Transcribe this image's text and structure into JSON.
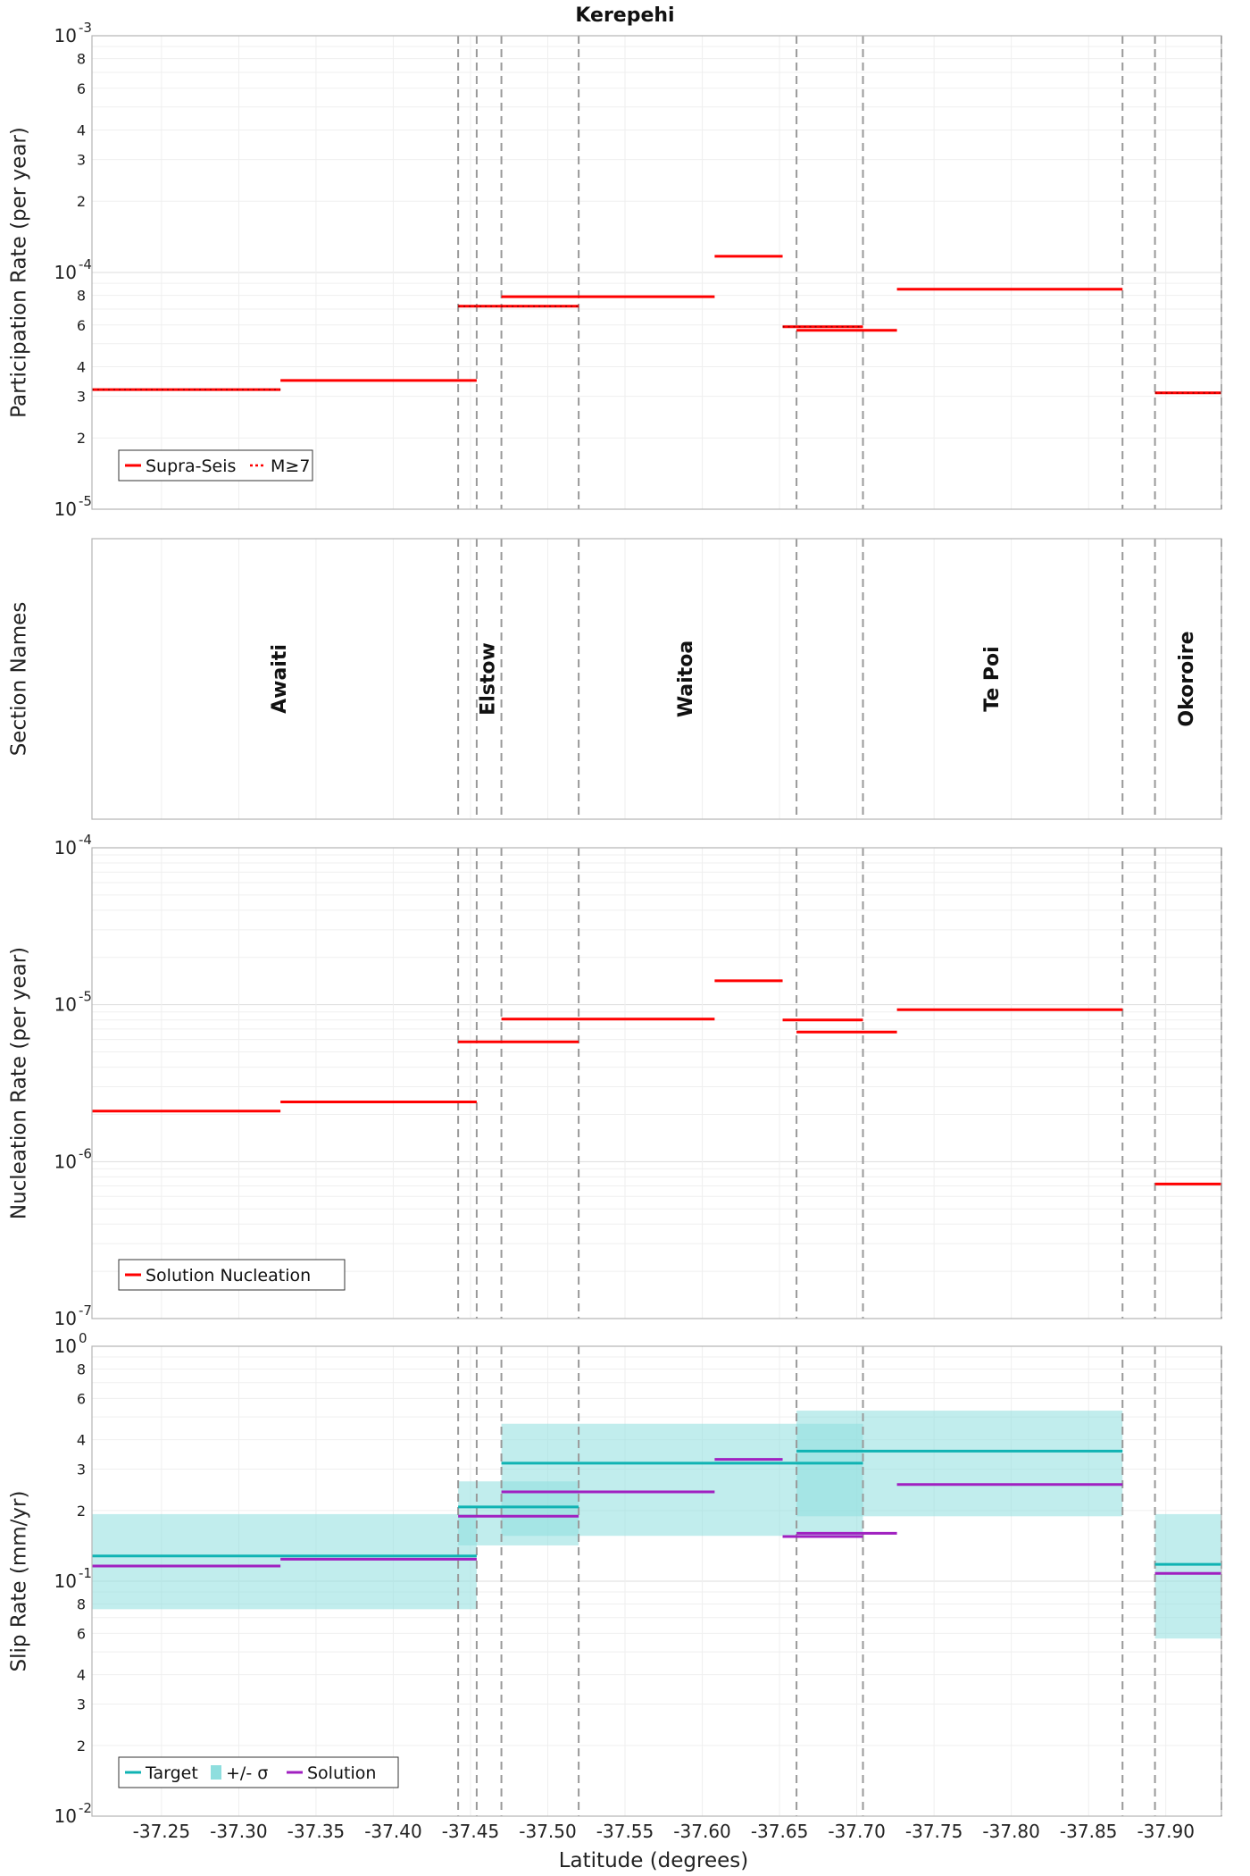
{
  "title": "Kerepehi",
  "xlabel": "Latitude (degrees)",
  "x_axis": {
    "xlim": [
      -37.205,
      -37.936
    ],
    "ticks": [
      -37.25,
      -37.3,
      -37.35,
      -37.4,
      -37.45,
      -37.5,
      -37.55,
      -37.6,
      -37.65,
      -37.7,
      -37.75,
      -37.8,
      -37.85,
      -37.9
    ],
    "tick_labels": [
      "-37.25",
      "-37.30",
      "-37.35",
      "-37.40",
      "-37.45",
      "-37.50",
      "-37.55",
      "-37.60",
      "-37.65",
      "-37.70",
      "-37.75",
      "-37.80",
      "-37.85",
      "-37.90"
    ]
  },
  "section_boundaries": [
    -37.442,
    -37.454,
    -37.47,
    -37.52,
    -37.661,
    -37.704,
    -37.872,
    -37.893,
    -37.936
  ],
  "colors": {
    "supra_seis": "#ff0000",
    "nucleation": "#ff0000",
    "target": "#10b3b3",
    "sigma_band": "#8edede",
    "solution": "#a020c0",
    "boundary": "#999999",
    "grid": "#e6e6e6"
  },
  "chart_data": [
    {
      "type": "line",
      "panel": "participation",
      "ylabel": "Participation Rate (per year)",
      "yscale": "log",
      "ylim": [
        1e-05,
        0.001
      ],
      "y_decade_labels": [
        {
          "base": "10",
          "exp": "-5",
          "value": 1e-05
        },
        {
          "base": "10",
          "exp": "-4",
          "value": 0.0001
        },
        {
          "base": "10",
          "exp": "-3",
          "value": 0.001
        }
      ],
      "y_minor_labels": [
        "2",
        "3",
        "4",
        "6",
        "8"
      ],
      "legend": {
        "position": "bottom-left",
        "entries": [
          "Supra-Seis",
          "M≥7"
        ]
      },
      "series": [
        {
          "name": "Supra-Seis",
          "style": "solid",
          "segments": [
            {
              "x": [
                -37.205,
                -37.327
              ],
              "y": 3.2e-05
            },
            {
              "x": [
                -37.327,
                -37.454
              ],
              "y": 3.5e-05
            },
            {
              "x": [
                -37.442,
                -37.52
              ],
              "y": 7.2e-05
            },
            {
              "x": [
                -37.47,
                -37.608
              ],
              "y": 7.9e-05
            },
            {
              "x": [
                -37.608,
                -37.652
              ],
              "y": 0.000117
            },
            {
              "x": [
                -37.652,
                -37.704
              ],
              "y": 5.9e-05
            },
            {
              "x": [
                -37.661,
                -37.726
              ],
              "y": 5.7e-05
            },
            {
              "x": [
                -37.726,
                -37.872
              ],
              "y": 8.5e-05
            },
            {
              "x": [
                -37.893,
                -37.936
              ],
              "y": 3.1e-05
            }
          ]
        },
        {
          "name": "M≥7",
          "style": "dotted",
          "segments": [
            {
              "x": [
                -37.205,
                -37.327
              ],
              "y": 3.2e-05
            },
            {
              "x": [
                -37.442,
                -37.52
              ],
              "y": 7.2e-05
            },
            {
              "x": [
                -37.652,
                -37.704
              ],
              "y": 5.9e-05
            },
            {
              "x": [
                -37.893,
                -37.936
              ],
              "y": 3.1e-05
            }
          ]
        }
      ]
    },
    {
      "type": "table",
      "panel": "sections",
      "ylabel": "Section Names",
      "sections": [
        {
          "name": "Awaiti",
          "x": -37.327
        },
        {
          "name": "Elstow",
          "x": -37.462
        },
        {
          "name": "Waitoa",
          "x": -37.59
        },
        {
          "name": "Te Poi",
          "x": -37.788
        },
        {
          "name": "Okoroire",
          "x": -37.914
        }
      ]
    },
    {
      "type": "line",
      "panel": "nucleation",
      "ylabel": "Nucleation Rate (per year)",
      "yscale": "log",
      "ylim": [
        1e-07,
        0.0001
      ],
      "y_decade_labels": [
        {
          "base": "10",
          "exp": "-7",
          "value": 1e-07
        },
        {
          "base": "10",
          "exp": "-6",
          "value": 1e-06
        },
        {
          "base": "10",
          "exp": "-5",
          "value": 1e-05
        },
        {
          "base": "10",
          "exp": "-4",
          "value": 0.0001
        }
      ],
      "legend": {
        "position": "bottom-left",
        "entries": [
          "Solution Nucleation"
        ]
      },
      "series": [
        {
          "name": "Solution Nucleation",
          "segments": [
            {
              "x": [
                -37.205,
                -37.327
              ],
              "y": 2.1e-06
            },
            {
              "x": [
                -37.327,
                -37.454
              ],
              "y": 2.4e-06
            },
            {
              "x": [
                -37.442,
                -37.52
              ],
              "y": 5.8e-06
            },
            {
              "x": [
                -37.47,
                -37.608
              ],
              "y": 8.1e-06
            },
            {
              "x": [
                -37.608,
                -37.652
              ],
              "y": 1.42e-05
            },
            {
              "x": [
                -37.652,
                -37.704
              ],
              "y": 8e-06
            },
            {
              "x": [
                -37.661,
                -37.726
              ],
              "y": 6.7e-06
            },
            {
              "x": [
                -37.726,
                -37.872
              ],
              "y": 9.3e-06
            },
            {
              "x": [
                -37.893,
                -37.936
              ],
              "y": 7.2e-07
            }
          ]
        }
      ]
    },
    {
      "type": "line",
      "panel": "slip",
      "ylabel": "Slip Rate (mm/yr)",
      "yscale": "log",
      "ylim": [
        0.01,
        1.0
      ],
      "y_decade_labels": [
        {
          "base": "10",
          "exp": "-2",
          "value": 0.01
        },
        {
          "base": "10",
          "exp": "-1",
          "value": 0.1
        },
        {
          "base": "10",
          "exp": "0",
          "value": 1.0
        }
      ],
      "y_minor_labels": [
        "2",
        "3",
        "4",
        "6",
        "8"
      ],
      "legend": {
        "position": "bottom-left",
        "entries": [
          "Target",
          "+/- σ",
          "Solution"
        ]
      },
      "sigma_bands": [
        {
          "x": [
            -37.205,
            -37.454
          ],
          "y": [
            0.076,
            0.193
          ]
        },
        {
          "x": [
            -37.442,
            -37.52
          ],
          "y": [
            0.142,
            0.266
          ]
        },
        {
          "x": [
            -37.47,
            -37.704
          ],
          "y": [
            0.156,
            0.468
          ]
        },
        {
          "x": [
            -37.661,
            -37.872
          ],
          "y": [
            0.189,
            0.532
          ]
        },
        {
          "x": [
            -37.893,
            -37.936
          ],
          "y": [
            0.057,
            0.193
          ]
        }
      ],
      "series": [
        {
          "name": "Target",
          "segments": [
            {
              "x": [
                -37.205,
                -37.454
              ],
              "y": 0.128
            },
            {
              "x": [
                -37.442,
                -37.52
              ],
              "y": 0.207
            },
            {
              "x": [
                -37.47,
                -37.704
              ],
              "y": 0.318
            },
            {
              "x": [
                -37.661,
                -37.872
              ],
              "y": 0.358
            },
            {
              "x": [
                -37.893,
                -37.936
              ],
              "y": 0.118
            }
          ]
        },
        {
          "name": "Solution",
          "segments": [
            {
              "x": [
                -37.205,
                -37.327
              ],
              "y": 0.116
            },
            {
              "x": [
                -37.327,
                -37.454
              ],
              "y": 0.124
            },
            {
              "x": [
                -37.442,
                -37.52
              ],
              "y": 0.189
            },
            {
              "x": [
                -37.47,
                -37.608
              ],
              "y": 0.24
            },
            {
              "x": [
                -37.608,
                -37.652
              ],
              "y": 0.33
            },
            {
              "x": [
                -37.652,
                -37.704
              ],
              "y": 0.155
            },
            {
              "x": [
                -37.661,
                -37.726
              ],
              "y": 0.16
            },
            {
              "x": [
                -37.726,
                -37.872
              ],
              "y": 0.258
            },
            {
              "x": [
                -37.893,
                -37.936
              ],
              "y": 0.108
            }
          ]
        }
      ]
    }
  ]
}
